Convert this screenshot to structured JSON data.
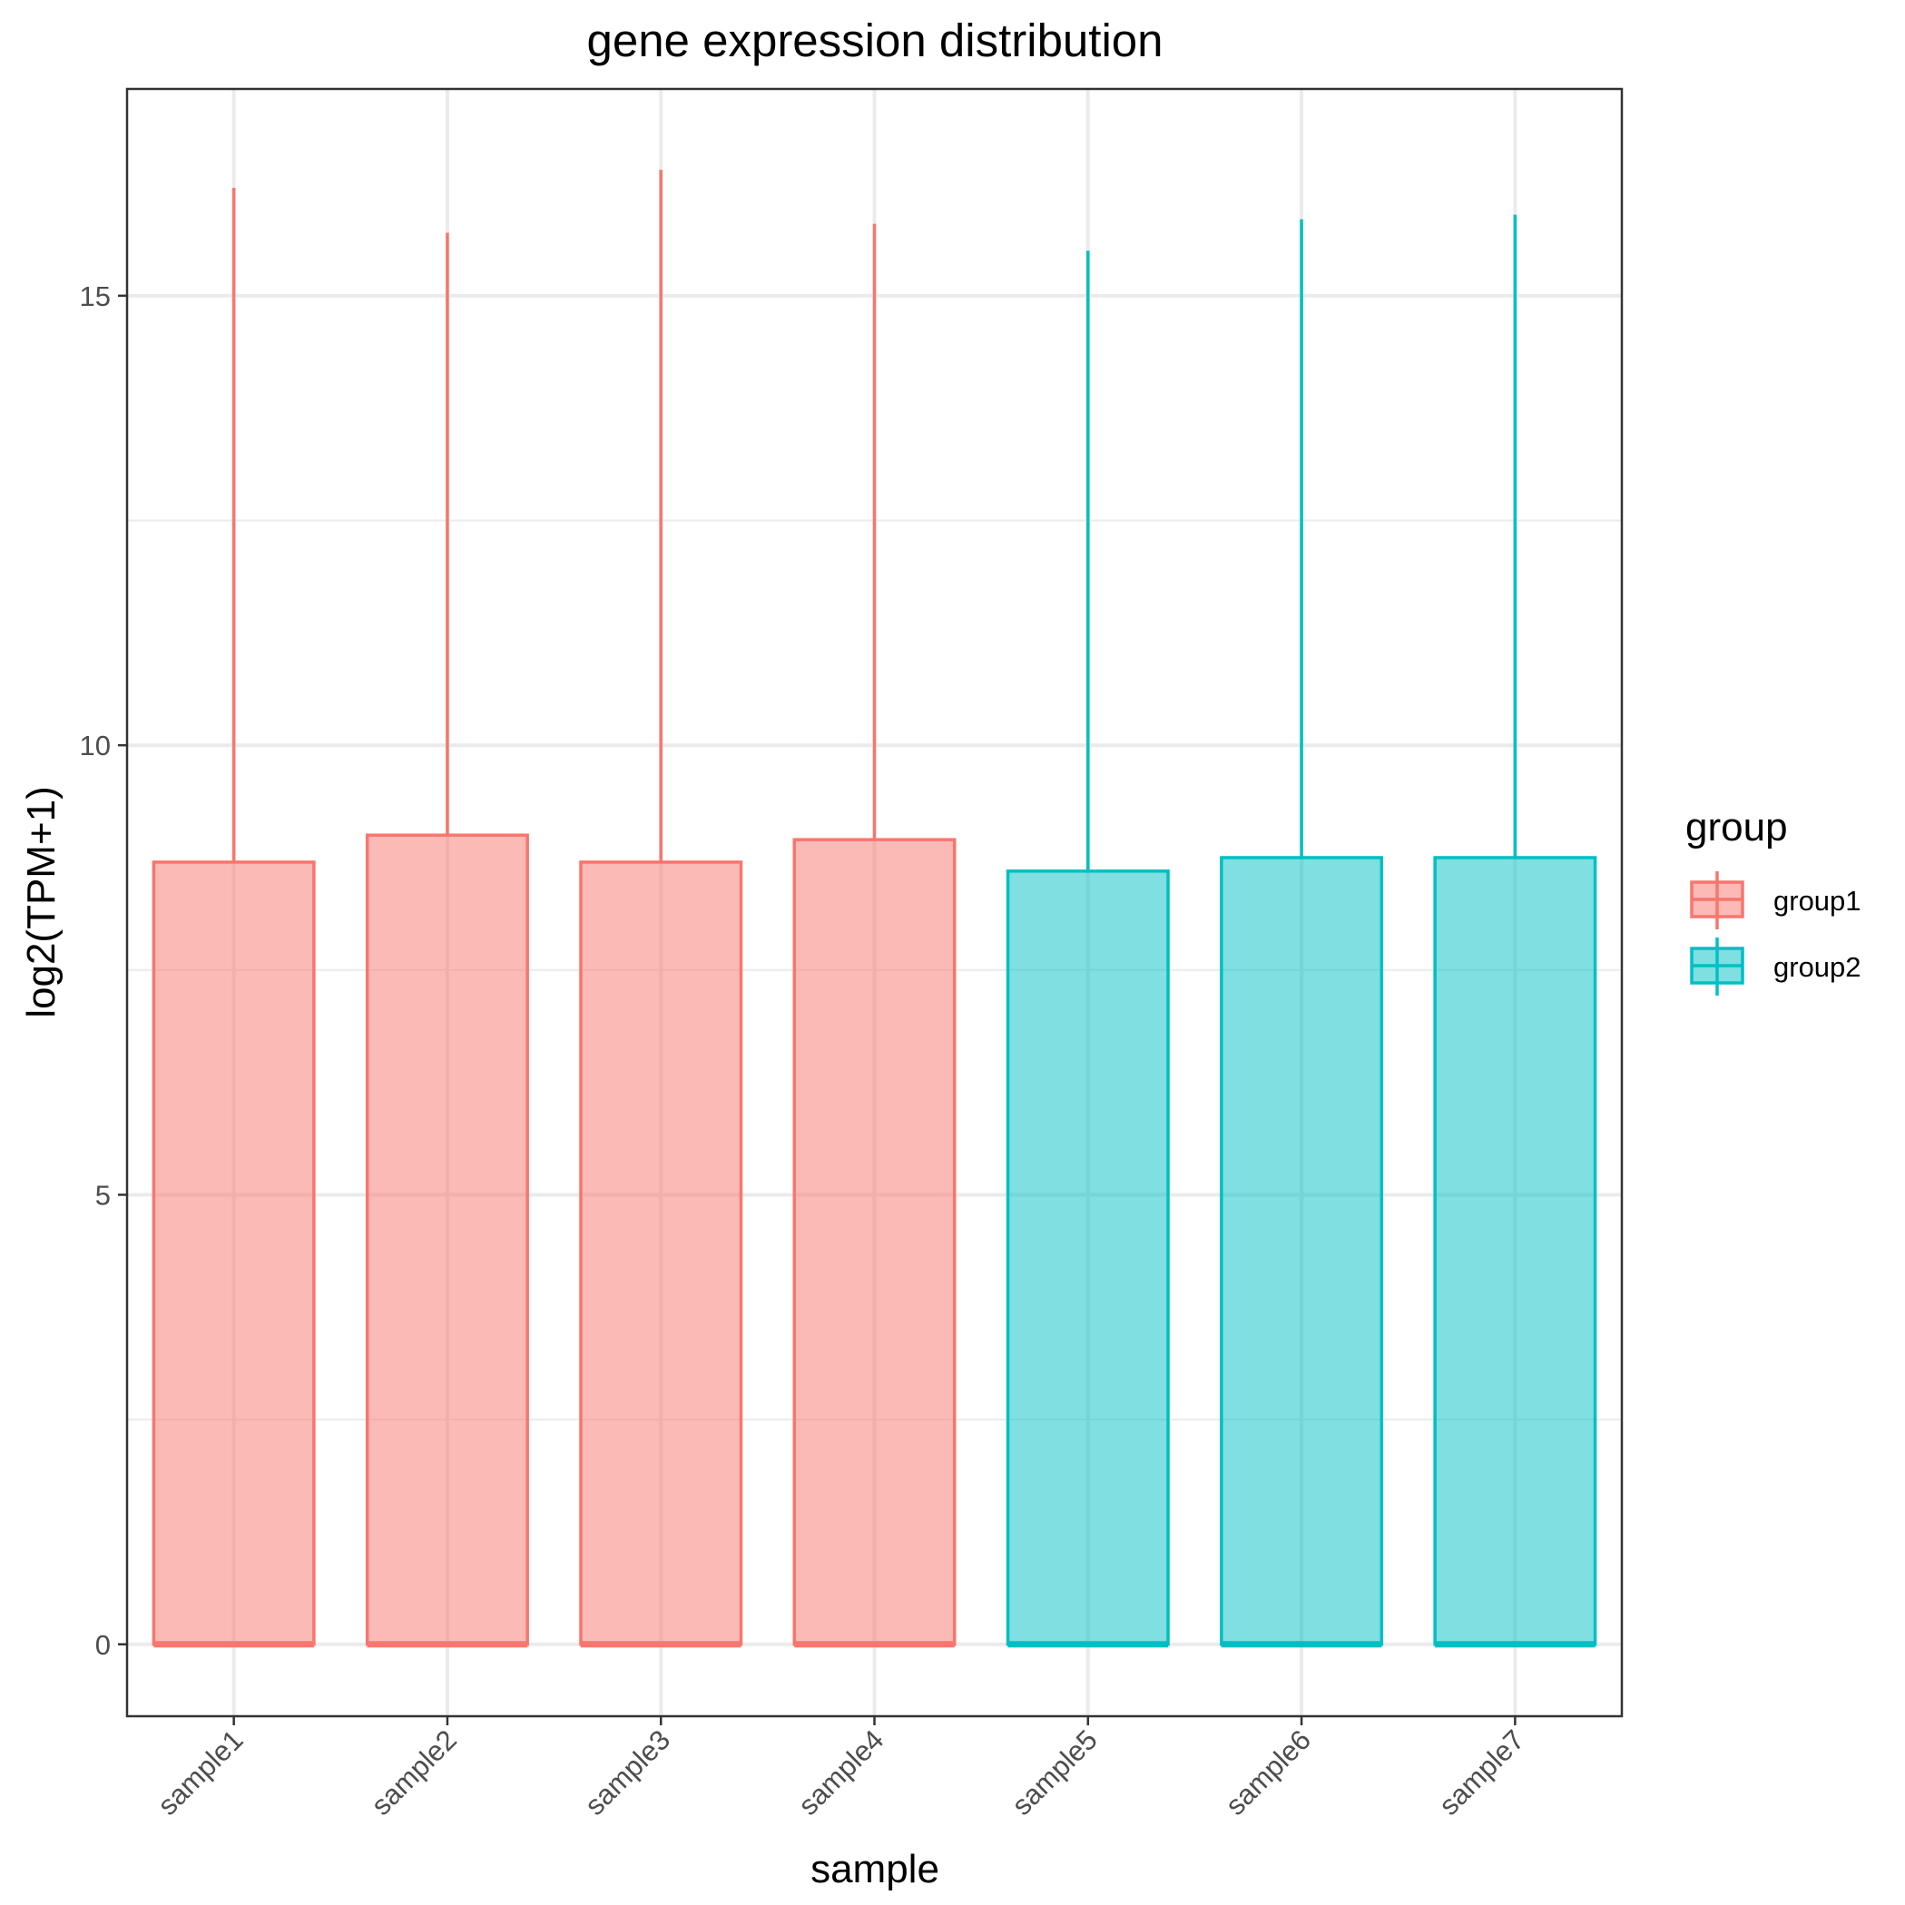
{
  "chart_data": {
    "type": "boxplot",
    "title": "gene expression distribution",
    "xlabel": "sample",
    "ylabel": "log2(TPM+1)",
    "ylim": [
      -0.8,
      17.3
    ],
    "yticks": [
      0,
      5,
      10,
      15
    ],
    "grid": true,
    "categories": [
      "sample1",
      "sample2",
      "sample3",
      "sample4",
      "sample5",
      "sample6",
      "sample7"
    ],
    "boxes": [
      {
        "sample": "sample1",
        "group": "group1",
        "min": 0,
        "q1": 0,
        "median": 0,
        "q3": 8.7,
        "max": 16.2
      },
      {
        "sample": "sample2",
        "group": "group1",
        "min": 0,
        "q1": 0,
        "median": 0,
        "q3": 9.0,
        "max": 15.7
      },
      {
        "sample": "sample3",
        "group": "group1",
        "min": 0,
        "q1": 0,
        "median": 0,
        "q3": 8.7,
        "max": 16.4
      },
      {
        "sample": "sample4",
        "group": "group1",
        "min": 0,
        "q1": 0,
        "median": 0,
        "q3": 8.95,
        "max": 15.8
      },
      {
        "sample": "sample5",
        "group": "group2",
        "min": 0,
        "q1": 0,
        "median": 0,
        "q3": 8.6,
        "max": 15.5
      },
      {
        "sample": "sample6",
        "group": "group2",
        "min": 0,
        "q1": 0,
        "median": 0,
        "q3": 8.75,
        "max": 15.85
      },
      {
        "sample": "sample7",
        "group": "group2",
        "min": 0,
        "q1": 0,
        "median": 0,
        "q3": 8.75,
        "max": 15.9
      }
    ],
    "legend": {
      "title": "group",
      "position": "right",
      "entries": [
        {
          "name": "group1",
          "stroke": "#F8766D",
          "fill": "#F8766D"
        },
        {
          "name": "group2",
          "stroke": "#00BFC4",
          "fill": "#00BFC4"
        }
      ]
    }
  }
}
